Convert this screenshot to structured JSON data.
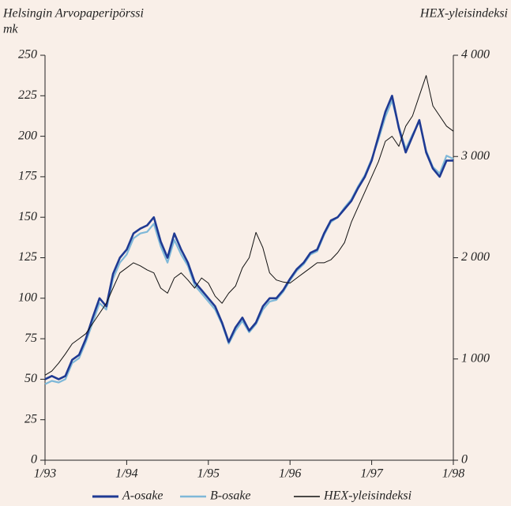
{
  "chart_data": {
    "type": "line",
    "left_label_1": "Helsingin Arvopaperipörssi",
    "left_label_2": "mk",
    "right_label": "HEX-yleisindeksi",
    "x": [
      1993,
      1993.083,
      1993.167,
      1993.25,
      1993.333,
      1993.417,
      1993.5,
      1993.583,
      1993.667,
      1993.75,
      1993.833,
      1993.917,
      1994,
      1994.083,
      1994.167,
      1994.25,
      1994.333,
      1994.417,
      1994.5,
      1994.583,
      1994.667,
      1994.75,
      1994.833,
      1994.917,
      1995,
      1995.083,
      1995.167,
      1995.25,
      1995.333,
      1995.417,
      1995.5,
      1995.583,
      1995.667,
      1995.75,
      1995.833,
      1995.917,
      1996,
      1996.083,
      1996.167,
      1996.25,
      1996.333,
      1996.417,
      1996.5,
      1996.583,
      1996.667,
      1996.75,
      1996.833,
      1996.917,
      1997,
      1997.083,
      1997.167,
      1997.25,
      1997.333,
      1997.417,
      1997.5,
      1997.583,
      1997.667,
      1997.75,
      1997.833,
      1997.917,
      1998
    ],
    "xlim": [
      1993,
      1998
    ],
    "xticks": [
      {
        "value": 1993,
        "label": "1/93"
      },
      {
        "value": 1994,
        "label": "1/94"
      },
      {
        "value": 1995,
        "label": "1/95"
      },
      {
        "value": 1996,
        "label": "1/96"
      },
      {
        "value": 1997,
        "label": "1/97"
      },
      {
        "value": 1998,
        "label": "1/98"
      }
    ],
    "ylim": [
      0,
      250
    ],
    "yticks": [
      0,
      25,
      50,
      75,
      100,
      125,
      150,
      175,
      200,
      225,
      250
    ],
    "y2lim": [
      0,
      4000
    ],
    "y2ticks": [
      0,
      {
        "value": 1000,
        "label": "1 000"
      },
      {
        "value": 2000,
        "label": "2 000"
      },
      {
        "value": 3000,
        "label": "3 000"
      },
      {
        "value": 4000,
        "label": "4 000"
      }
    ],
    "series": [
      {
        "name": "A-osake",
        "color": "#1f3a93",
        "values": [
          50,
          52,
          50,
          52,
          62,
          65,
          75,
          88,
          100,
          95,
          115,
          125,
          130,
          140,
          143,
          145,
          150,
          135,
          125,
          140,
          130,
          122,
          110,
          105,
          100,
          95,
          85,
          73,
          82,
          88,
          80,
          85,
          95,
          100,
          100,
          105,
          112,
          118,
          122,
          128,
          130,
          140,
          148,
          150,
          155,
          160,
          168,
          175,
          185,
          200,
          215,
          225,
          205,
          190,
          200,
          210,
          190,
          180,
          175,
          185,
          185
        ]
      },
      {
        "name": "B-osake",
        "color": "#7fb8d8",
        "values": [
          47,
          49,
          48,
          50,
          60,
          63,
          73,
          85,
          97,
          93,
          112,
          122,
          127,
          137,
          140,
          141,
          146,
          132,
          122,
          136,
          127,
          120,
          108,
          103,
          98,
          93,
          84,
          72,
          80,
          86,
          79,
          84,
          93,
          98,
          99,
          104,
          111,
          117,
          121,
          127,
          129,
          139,
          147,
          150,
          156,
          161,
          169,
          176,
          186,
          198,
          212,
          222,
          206,
          192,
          201,
          209,
          191,
          181,
          177,
          188,
          186
        ]
      },
      {
        "name": "HEX-yleisindeksi",
        "color": "#111111",
        "axis": "y2",
        "values": [
          840,
          880,
          960,
          1050,
          1150,
          1200,
          1250,
          1350,
          1450,
          1550,
          1700,
          1850,
          1900,
          1950,
          1920,
          1880,
          1850,
          1700,
          1650,
          1800,
          1850,
          1780,
          1700,
          1800,
          1750,
          1620,
          1550,
          1650,
          1720,
          1900,
          2000,
          2250,
          2100,
          1850,
          1780,
          1760,
          1750,
          1800,
          1850,
          1900,
          1950,
          1950,
          1980,
          2050,
          2150,
          2350,
          2500,
          2650,
          2800,
          2950,
          3150,
          3200,
          3100,
          3300,
          3400,
          3600,
          3800,
          3500,
          3400,
          3300,
          3250
        ]
      }
    ]
  }
}
